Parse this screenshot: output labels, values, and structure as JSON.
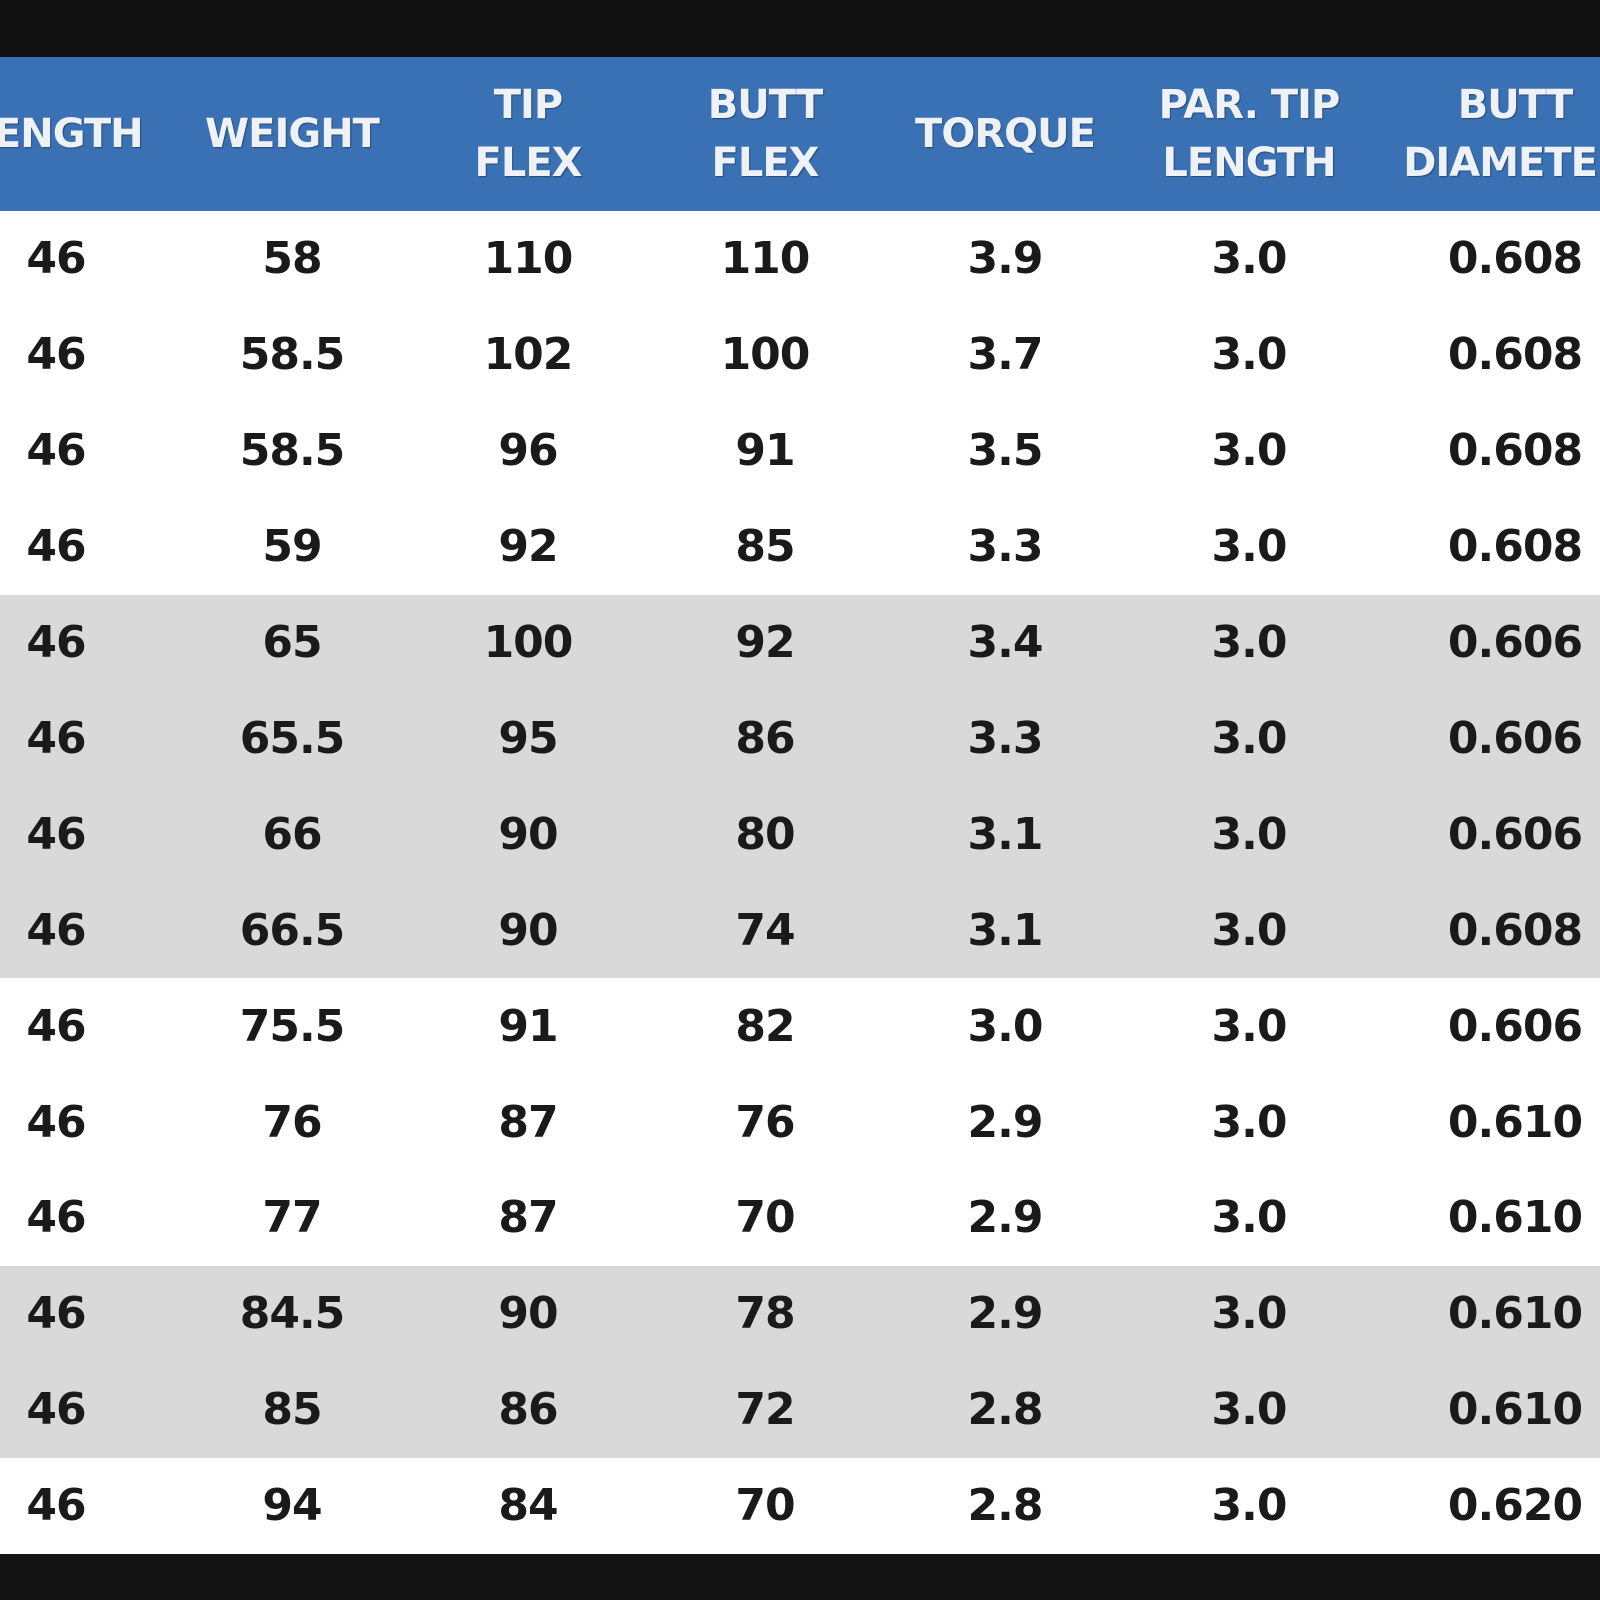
{
  "table": {
    "header": [
      "LENGTH",
      "WEIGHT",
      "TIP\nFLEX",
      "BUTT\nFLEX",
      "TORQUE",
      "PAR. TIP\nLENGTH",
      "BUTT\nDIAMETER"
    ],
    "rows": [
      [
        "46",
        "58",
        "110",
        "110",
        "3.9",
        "3.0",
        "0.608"
      ],
      [
        "46",
        "58.5",
        "102",
        "100",
        "3.7",
        "3.0",
        "0.608"
      ],
      [
        "46",
        "58.5",
        "96",
        "91",
        "3.5",
        "3.0",
        "0.608"
      ],
      [
        "46",
        "59",
        "92",
        "85",
        "3.3",
        "3.0",
        "0.608"
      ],
      [
        "46",
        "65",
        "100",
        "92",
        "3.4",
        "3.0",
        "0.606"
      ],
      [
        "46",
        "65.5",
        "95",
        "86",
        "3.3",
        "3.0",
        "0.606"
      ],
      [
        "46",
        "66",
        "90",
        "80",
        "3.1",
        "3.0",
        "0.606"
      ],
      [
        "46",
        "66.5",
        "90",
        "74",
        "3.1",
        "3.0",
        "0.608"
      ],
      [
        "46",
        "75.5",
        "91",
        "82",
        "3.0",
        "3.0",
        "0.606"
      ],
      [
        "46",
        "76",
        "87",
        "76",
        "2.9",
        "3.0",
        "0.610"
      ],
      [
        "46",
        "77",
        "87",
        "70",
        "2.9",
        "3.0",
        "0.610"
      ],
      [
        "46",
        "84.5",
        "90",
        "78",
        "2.9",
        "3.0",
        "0.610"
      ],
      [
        "46",
        "85",
        "86",
        "72",
        "2.8",
        "3.0",
        "0.610"
      ],
      [
        "46",
        "94",
        "84",
        "70",
        "2.8",
        "3.0",
        "0.620"
      ]
    ]
  }
}
